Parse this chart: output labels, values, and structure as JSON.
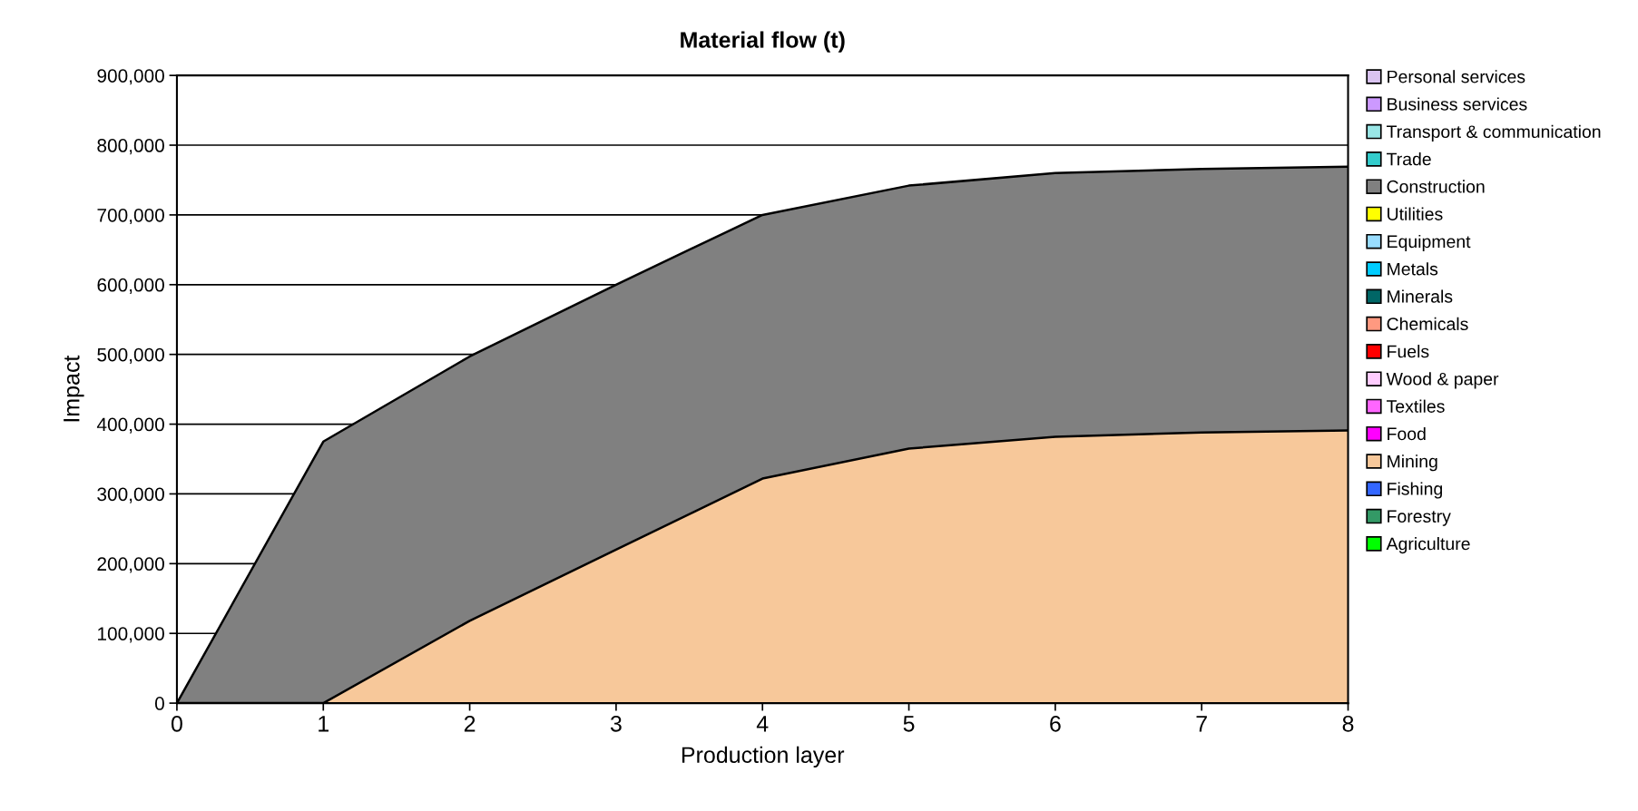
{
  "chart_data": {
    "type": "area",
    "stacked": true,
    "title": "Material flow (t)",
    "xlabel": "Production layer",
    "ylabel": "Impact",
    "x": [
      0,
      1,
      2,
      3,
      4,
      5,
      6,
      7,
      8
    ],
    "xlim": [
      0,
      8
    ],
    "xticks": [
      0,
      1,
      2,
      3,
      4,
      5,
      6,
      7,
      8
    ],
    "ylim": [
      0,
      900000
    ],
    "yticks": [
      0,
      {
        "value": 100000,
        "label": "100,000"
      },
      {
        "value": 200000,
        "label": "200,000"
      },
      {
        "value": 300000,
        "label": "300,000"
      },
      {
        "value": 400000,
        "label": "400,000"
      },
      {
        "value": 500000,
        "label": "500,000"
      },
      {
        "value": 600000,
        "label": "600,000"
      },
      {
        "value": 700000,
        "label": "700,000"
      },
      {
        "value": 800000,
        "label": "800,000"
      },
      {
        "value": 900000,
        "label": "900,000"
      }
    ],
    "grid": "y",
    "legend": "right",
    "series": [
      {
        "name": "Agriculture",
        "color": "#00ff00",
        "values": [
          null,
          null,
          null,
          null,
          null,
          null,
          null,
          null,
          null
        ]
      },
      {
        "name": "Forestry",
        "color": "#339966",
        "values": [
          null,
          null,
          null,
          null,
          null,
          null,
          null,
          null,
          null
        ]
      },
      {
        "name": "Fishing",
        "color": "#3366ff",
        "values": [
          null,
          null,
          null,
          null,
          null,
          null,
          null,
          null,
          null
        ]
      },
      {
        "name": "Mining",
        "color": "#f7c89a",
        "values": [
          0,
          0,
          118000,
          220000,
          322000,
          365000,
          382000,
          388000,
          391000
        ]
      },
      {
        "name": "Food",
        "color": "#ff00ff",
        "values": [
          null,
          null,
          null,
          null,
          null,
          null,
          null,
          null,
          null
        ]
      },
      {
        "name": "Textiles",
        "color": "#ff66ff",
        "values": [
          null,
          null,
          null,
          null,
          null,
          null,
          null,
          null,
          null
        ]
      },
      {
        "name": "Wood & paper",
        "color": "#ffccff",
        "values": [
          null,
          null,
          null,
          null,
          null,
          null,
          null,
          null,
          null
        ]
      },
      {
        "name": "Fuels",
        "color": "#ff0000",
        "values": [
          null,
          null,
          null,
          null,
          null,
          null,
          null,
          null,
          null
        ]
      },
      {
        "name": "Chemicals",
        "color": "#ff9980",
        "values": [
          null,
          null,
          null,
          null,
          null,
          null,
          null,
          null,
          null
        ]
      },
      {
        "name": "Minerals",
        "color": "#006666",
        "values": [
          null,
          null,
          null,
          null,
          null,
          null,
          null,
          null,
          null
        ]
      },
      {
        "name": "Metals",
        "color": "#00ccff",
        "values": [
          null,
          null,
          null,
          null,
          null,
          null,
          null,
          null,
          null
        ]
      },
      {
        "name": "Equipment",
        "color": "#99ddff",
        "values": [
          null,
          null,
          null,
          null,
          null,
          null,
          null,
          null,
          null
        ]
      },
      {
        "name": "Utilities",
        "color": "#ffff00",
        "values": [
          null,
          null,
          null,
          null,
          null,
          null,
          null,
          null,
          null
        ]
      },
      {
        "name": "Construction",
        "color": "#808080",
        "values": [
          0,
          375000,
          379000,
          380000,
          378000,
          377000,
          378000,
          378000,
          378000
        ]
      },
      {
        "name": "Trade",
        "color": "#33cccc",
        "values": [
          null,
          null,
          null,
          null,
          null,
          null,
          null,
          null,
          null
        ]
      },
      {
        "name": "Transport & communication",
        "color": "#99e6e6",
        "values": [
          null,
          null,
          null,
          null,
          null,
          null,
          null,
          null,
          null
        ]
      },
      {
        "name": "Business services",
        "color": "#cc99ff",
        "values": [
          null,
          null,
          null,
          null,
          null,
          null,
          null,
          null,
          null
        ]
      },
      {
        "name": "Personal services",
        "color": "#d9c3f0",
        "values": [
          null,
          null,
          null,
          null,
          null,
          null,
          null,
          null,
          null
        ]
      }
    ]
  }
}
